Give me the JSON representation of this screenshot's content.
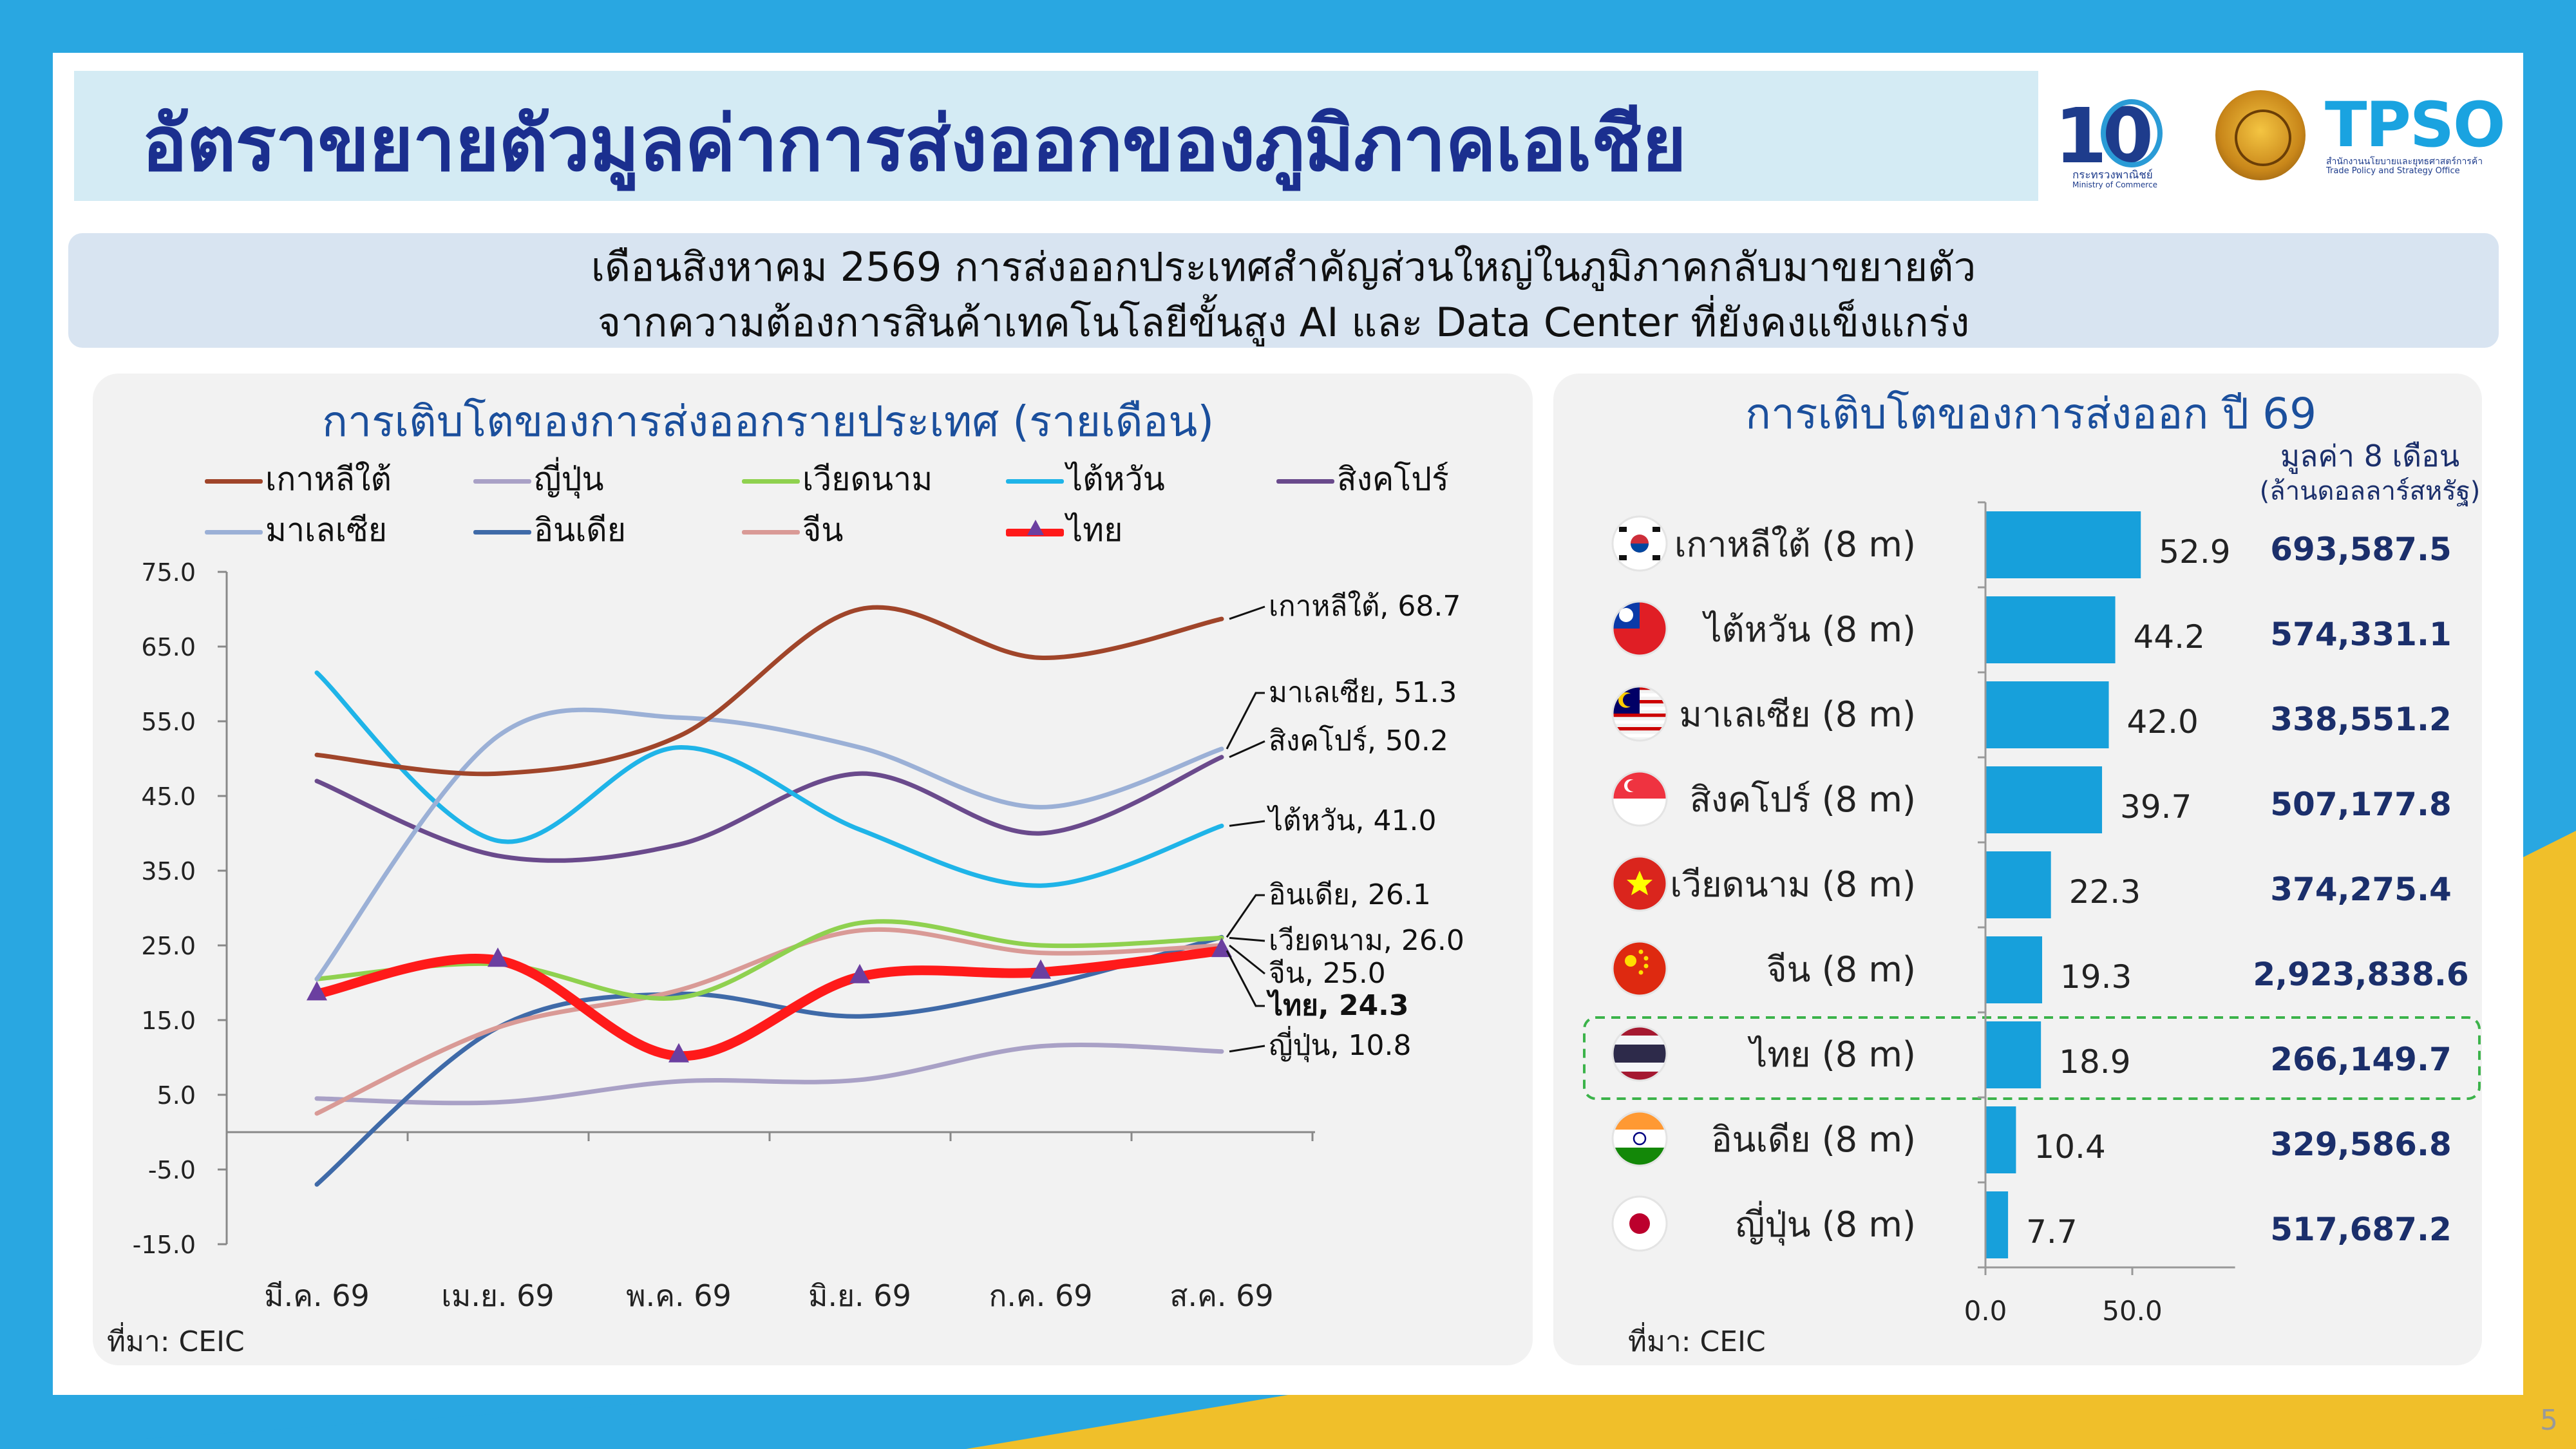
{
  "title": "อัตราขยายตัวมูลค่าการส่งออกของภูมิภาคเอเชีย",
  "logos": {
    "moc_text": "กระทรวงพาณิชย์",
    "moc_en": "Ministry of Commerce",
    "tpso_name": "TPSO",
    "tpso_th": "สำนักงานนโยบายและยุทธศาสตร์การค้า",
    "tpso_en": "Trade Policy and Strategy Office"
  },
  "subtitle": {
    "line1": "เดือนสิงหาคม 2569 การส่งออกประเทศสำคัญส่วนใหญ่ในภูมิภาคกลับมาขยายตัว",
    "line2": "จากความต้องการสินค้าเทคโนโลยีขั้นสูง AI และ Data Center ที่ยังคงแข็งแกร่ง"
  },
  "left_source": "ที่มา: CEIC",
  "right_source": "ที่มา: CEIC",
  "page_number": "5",
  "right_header": {
    "line1": "มูลค่า 8 เดือน",
    "line2": "(ล้านดอลลาร์สหรัฐ)"
  },
  "colors": {
    "korea": "#a0452a",
    "japan": "#a9a1c6",
    "vietnam": "#8fd14f",
    "taiwan": "#1fb4e8",
    "singapore": "#6a4a8c",
    "malaysia": "#9bb0d6",
    "india": "#3f6aa8",
    "china": "#d99a96",
    "thailand": "#ff1a1a",
    "marker": "#6b3fa0",
    "bar": "#17a0db"
  },
  "chart_data": [
    {
      "type": "line",
      "title": "การเติบโตของการส่งออกรายประเทศ (รายเดือน)",
      "categories": [
        "มี.ค. 69",
        "เม.ย. 69",
        "พ.ค. 69",
        "มิ.ย. 69",
        "ก.ค. 69",
        "ส.ค. 69"
      ],
      "ylim": [
        -15,
        75
      ],
      "yticks": [
        "75.0",
        "65.0",
        "55.0",
        "45.0",
        "35.0",
        "25.0",
        "15.0",
        "5.0",
        "-5.0",
        "-15.0"
      ],
      "ytick_values": [
        75,
        65,
        55,
        45,
        35,
        25,
        15,
        5,
        -5,
        -15
      ],
      "grid": false,
      "legend_position": "top",
      "series": [
        {
          "key": "korea",
          "name": "เกาหลีใต้",
          "values": [
            50.5,
            48.0,
            53.0,
            70.0,
            63.5,
            68.7
          ],
          "end_label": "เกาหลีใต้, 68.7"
        },
        {
          "key": "japan",
          "name": "ญี่ปุ่น",
          "values": [
            4.5,
            4.0,
            6.8,
            7.0,
            11.5,
            10.8
          ],
          "end_label": "ญี่ปุ่น, 10.8"
        },
        {
          "key": "vietnam",
          "name": "เวียดนาม",
          "values": [
            20.5,
            22.5,
            18.0,
            28.0,
            25.0,
            26.0
          ],
          "end_label": "เวียดนาม, 26.0"
        },
        {
          "key": "taiwan",
          "name": "ไต้หวัน",
          "values": [
            61.5,
            39.0,
            51.5,
            40.5,
            33.0,
            41.0
          ],
          "end_label": "ไต้หวัน, 41.0"
        },
        {
          "key": "singapore",
          "name": "สิงคโปร์",
          "values": [
            47.0,
            37.0,
            38.5,
            48.0,
            40.0,
            50.2
          ],
          "end_label": "สิงคโปร์, 50.2"
        },
        {
          "key": "malaysia",
          "name": "มาเลเซีย",
          "values": [
            20.5,
            53.0,
            55.5,
            51.5,
            43.5,
            51.3
          ],
          "end_label": "มาเลเซีย, 51.3"
        },
        {
          "key": "india",
          "name": "อินเดีย",
          "values": [
            -7.0,
            14.0,
            18.5,
            15.5,
            19.5,
            26.1
          ],
          "end_label": "อินเดีย, 26.1"
        },
        {
          "key": "china",
          "name": "จีน",
          "values": [
            2.5,
            14.0,
            19.0,
            27.0,
            24.0,
            25.0
          ],
          "end_label": "จีน, 25.0"
        },
        {
          "key": "thailand",
          "name": "ไทย",
          "values": [
            18.5,
            23.0,
            10.2,
            20.8,
            21.4,
            24.3
          ],
          "end_label": "ไทย, 24.3"
        }
      ]
    },
    {
      "type": "bar",
      "orientation": "horizontal",
      "title": "การเติบโตของการส่งออก ปี 69",
      "categories": [
        "เกาหลีใต้ (8 m)",
        "ไต้หวัน (8 m)",
        "มาเลเซีย (8 m)",
        "สิงคโปร์ (8 m)",
        "เวียดนาม (8 m)",
        "จีน (8 m)",
        "ไทย (8 m)",
        "อินเดีย (8 m)",
        "ญี่ปุ่น (8 m)"
      ],
      "flags": [
        "korea",
        "taiwan",
        "malaysia",
        "singapore",
        "vietnam",
        "china",
        "thailand",
        "india",
        "japan"
      ],
      "values": [
        52.9,
        44.2,
        42.0,
        39.7,
        22.3,
        19.3,
        18.9,
        10.4,
        7.7
      ],
      "value_labels": [
        "52.9",
        "44.2",
        "42.0",
        "39.7",
        "22.3",
        "19.3",
        "18.9",
        "10.4",
        "7.7"
      ],
      "amounts": [
        "693,587.5",
        "574,331.1",
        "338,551.2",
        "507,177.8",
        "374,275.4",
        "2,923,838.6",
        "266,149.7",
        "329,586.8",
        "517,687.2"
      ],
      "highlight": "ไทย (8 m)",
      "xlim": [
        0,
        85
      ],
      "xticks": [
        "0.0",
        "50.0"
      ],
      "xtick_values": [
        0,
        50
      ]
    }
  ]
}
